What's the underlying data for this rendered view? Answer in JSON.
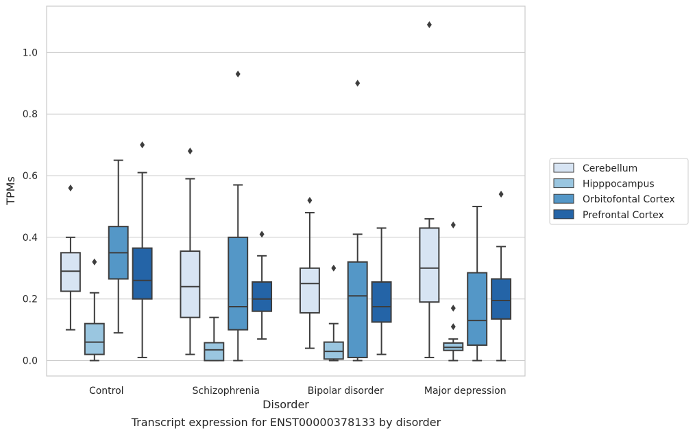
{
  "caption": "Transcript expression for ENST00000378133 by disorder",
  "chart_data": {
    "type": "box",
    "xlabel": "Disorder",
    "ylabel": "TPMs",
    "ylim": [
      -0.05,
      1.15
    ],
    "yticks": [
      "0.0",
      "0.2",
      "0.4",
      "0.6",
      "0.8",
      "1.0"
    ],
    "grid": true,
    "legend_position": "right",
    "categories": [
      "Control",
      "Schizophrenia",
      "Bipolar disorder",
      "Major depression"
    ],
    "series": [
      {
        "name": "Cerebellum",
        "color": "#d7e4f3",
        "boxes": [
          {
            "whislo": 0.1,
            "q1": 0.225,
            "med": 0.29,
            "q3": 0.35,
            "whishi": 0.4,
            "fliers": [
              0.56
            ]
          },
          {
            "whislo": 0.02,
            "q1": 0.14,
            "med": 0.24,
            "q3": 0.355,
            "whishi": 0.59,
            "fliers": [
              0.68
            ]
          },
          {
            "whislo": 0.04,
            "q1": 0.155,
            "med": 0.25,
            "q3": 0.3,
            "whishi": 0.48,
            "fliers": [
              0.52
            ]
          },
          {
            "whislo": 0.01,
            "q1": 0.19,
            "med": 0.3,
            "q3": 0.43,
            "whishi": 0.46,
            "fliers": [
              1.09
            ]
          }
        ]
      },
      {
        "name": "Hipppocampus",
        "color": "#9ac6e0",
        "boxes": [
          {
            "whislo": 0.0,
            "q1": 0.02,
            "med": 0.06,
            "q3": 0.12,
            "whishi": 0.22,
            "fliers": [
              0.32
            ]
          },
          {
            "whislo": 0.0,
            "q1": 0.0,
            "med": 0.035,
            "q3": 0.058,
            "whishi": 0.14,
            "fliers": []
          },
          {
            "whislo": 0.0,
            "q1": 0.005,
            "med": 0.03,
            "q3": 0.06,
            "whishi": 0.12,
            "fliers": [
              0.3
            ]
          },
          {
            "whislo": 0.0,
            "q1": 0.033,
            "med": 0.043,
            "q3": 0.057,
            "whishi": 0.07,
            "fliers": [
              0.44,
              0.17,
              0.11
            ]
          }
        ]
      },
      {
        "name": "Orbitofontal Cortex",
        "color": "#5497c7",
        "boxes": [
          {
            "whislo": 0.09,
            "q1": 0.265,
            "med": 0.35,
            "q3": 0.435,
            "whishi": 0.65,
            "fliers": []
          },
          {
            "whislo": 0.0,
            "q1": 0.1,
            "med": 0.175,
            "q3": 0.4,
            "whishi": 0.57,
            "fliers": [
              0.93
            ]
          },
          {
            "whislo": 0.0,
            "q1": 0.01,
            "med": 0.21,
            "q3": 0.32,
            "whishi": 0.41,
            "fliers": [
              0.9
            ]
          },
          {
            "whislo": 0.0,
            "q1": 0.05,
            "med": 0.13,
            "q3": 0.285,
            "whishi": 0.5,
            "fliers": []
          }
        ]
      },
      {
        "name": "Prefrontal Cortex",
        "color": "#2464a7",
        "boxes": [
          {
            "whislo": 0.01,
            "q1": 0.2,
            "med": 0.26,
            "q3": 0.365,
            "whishi": 0.61,
            "fliers": [
              0.7
            ]
          },
          {
            "whislo": 0.07,
            "q1": 0.16,
            "med": 0.2,
            "q3": 0.255,
            "whishi": 0.34,
            "fliers": [
              0.41
            ]
          },
          {
            "whislo": 0.02,
            "q1": 0.125,
            "med": 0.175,
            "q3": 0.255,
            "whishi": 0.43,
            "fliers": []
          },
          {
            "whislo": 0.0,
            "q1": 0.135,
            "med": 0.195,
            "q3": 0.265,
            "whishi": 0.37,
            "fliers": [
              0.54
            ]
          }
        ]
      }
    ]
  }
}
